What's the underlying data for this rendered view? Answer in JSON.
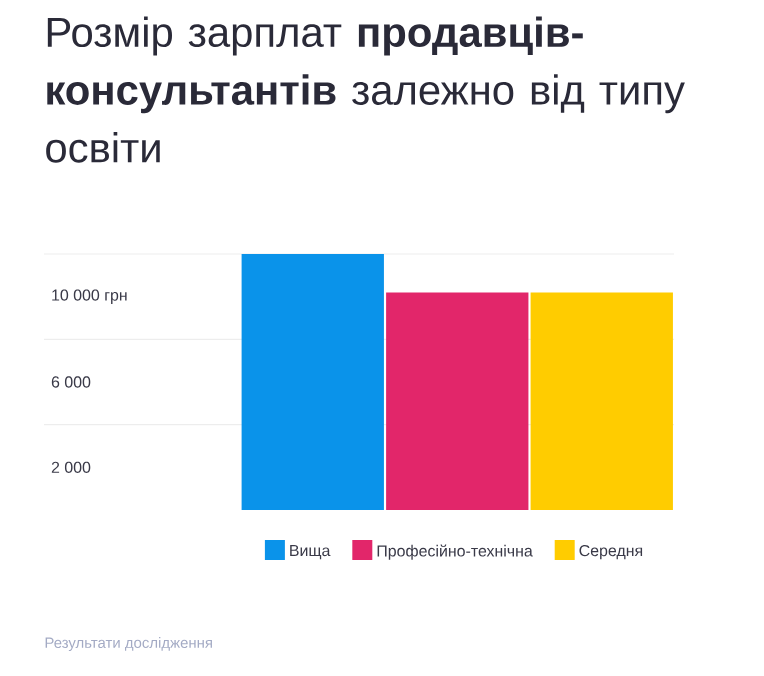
{
  "chart_data": {
    "type": "bar",
    "title": "Розмір зарплат **продавців-консультантів** залежно від типу освіти",
    "categories": [
      null
    ],
    "series": [
      {
        "name": "Вища",
        "color": "#0a93ea",
        "values": [
          12000
        ]
      },
      {
        "name": "Професійно-технічна",
        "color": "#e2266a",
        "values": [
          10200
        ]
      },
      {
        "name": "Середня",
        "color": "#ffcc00",
        "values": [
          10200
        ]
      }
    ],
    "ylim": [
      0,
      12000
    ],
    "yticks": [
      {
        "value": 2000,
        "label": "2 000"
      },
      {
        "value": 4000,
        "label": null
      },
      {
        "value": 6000,
        "label": "6 000"
      },
      {
        "value": 8000,
        "label": null
      },
      {
        "value": 10000,
        "label": "10 000 грн"
      },
      {
        "value": 12000,
        "label": null
      }
    ],
    "grid": "y",
    "legend": "bottom",
    "annotations": [
      "Результати дослідження"
    ]
  }
}
